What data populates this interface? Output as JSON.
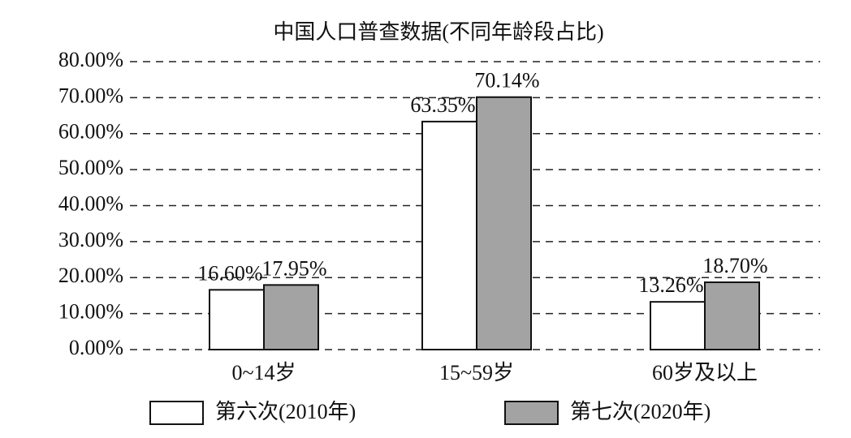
{
  "chart_data": {
    "type": "bar",
    "title": "中国人口普查数据(不同年龄段占比)",
    "categories": [
      "0~14岁",
      "15~59岁",
      "60岁及以上"
    ],
    "series": [
      {
        "name": "第六次(2010年)",
        "color": "#ffffff",
        "values": [
          16.6,
          63.35,
          13.26
        ],
        "value_labels": [
          "16.60%",
          "63.35%",
          "13.26%"
        ]
      },
      {
        "name": "第七次(2020年)",
        "color": "#a3a3a3",
        "values": [
          17.95,
          70.14,
          18.7
        ],
        "value_labels": [
          "17.95%",
          "70.14%",
          "18.70%"
        ]
      }
    ],
    "ylim": [
      0,
      80
    ],
    "yticks": [
      {
        "value": 0,
        "label": "0.00%"
      },
      {
        "value": 10,
        "label": "10.00%"
      },
      {
        "value": 20,
        "label": "20.00%"
      },
      {
        "value": 30,
        "label": "30.00%"
      },
      {
        "value": 40,
        "label": "40.00%"
      },
      {
        "value": 50,
        "label": "50.00%"
      },
      {
        "value": 60,
        "label": "60.00%"
      },
      {
        "value": 70,
        "label": "70.00%"
      },
      {
        "value": 80,
        "label": "80.00%"
      }
    ],
    "grid": true
  }
}
